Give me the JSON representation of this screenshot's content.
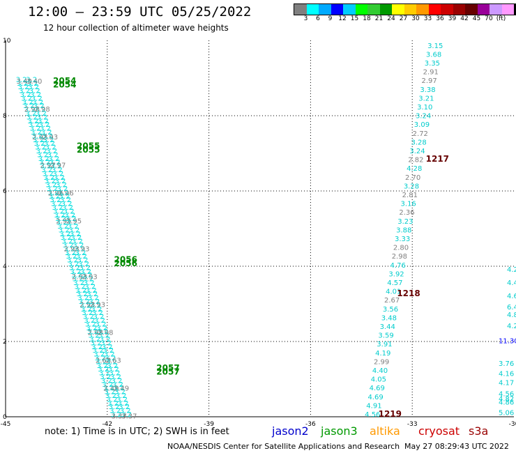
{
  "title": "12:00 – 23:59 UTC 05/25/2022",
  "subtitle": "12 hour collection of altimeter wave heights",
  "colorbar": {
    "colors": [
      "#808080",
      "#00ffff",
      "#00aaff",
      "#0000ff",
      "#00ccff",
      "#00ff00",
      "#33cc33",
      "#009900",
      "#ffff00",
      "#ffcc00",
      "#ff9900",
      "#ff0000",
      "#cc0000",
      "#990000",
      "#660000",
      "#990099",
      "#cc99ff",
      "#ff99ff",
      "#000000"
    ],
    "labels": [
      "3",
      "6",
      "9",
      "12",
      "15",
      "18",
      "21",
      "24",
      "27",
      "30",
      "33",
      "36",
      "39",
      "42",
      "45",
      "70",
      "(ft)"
    ]
  },
  "axes": {
    "x_ticks": [
      "-45",
      "-42",
      "-39",
      "-36",
      "-33",
      "-30"
    ],
    "y_ticks": [
      "0",
      "2",
      "4",
      "6",
      "8",
      "10"
    ],
    "xlim": [
      -45,
      -30
    ],
    "ylim": [
      0,
      10
    ]
  },
  "passes": {
    "left": [
      {
        "label": "2054",
        "lon": -43.6,
        "lat": 8.85
      },
      {
        "label": "2054",
        "lon": -43.6,
        "lat": 8.75
      },
      {
        "label": "2055",
        "lon": -42.9,
        "lat": 7.12
      },
      {
        "label": "2055",
        "lon": -42.9,
        "lat": 7.02
      },
      {
        "label": "2056",
        "lon": -41.8,
        "lat": 4.1
      },
      {
        "label": "2056",
        "lon": -41.8,
        "lat": 4.0
      },
      {
        "label": "2057",
        "lon": -40.55,
        "lat": 1.22
      },
      {
        "label": "2057",
        "lon": -40.55,
        "lat": 1.12
      }
    ],
    "right": [
      {
        "label": "1217",
        "lon": -32.6,
        "lat": 6.78
      },
      {
        "label": "1218",
        "lon": -33.45,
        "lat": 3.2
      },
      {
        "label": "1219",
        "lon": -34.0,
        "lat": 0.0
      }
    ]
  },
  "right_track": [
    {
      "v": "3.15",
      "c": "#00cccc"
    },
    {
      "v": "3.68",
      "c": "#00cccc"
    },
    {
      "v": "3.35",
      "c": "#00cccc"
    },
    {
      "v": "2.91",
      "c": "#808080"
    },
    {
      "v": "2.97",
      "c": "#808080"
    },
    {
      "v": "3.38",
      "c": "#00cccc"
    },
    {
      "v": "3.21",
      "c": "#00cccc"
    },
    {
      "v": "3.10",
      "c": "#00cccc"
    },
    {
      "v": "3.24",
      "c": "#00cccc"
    },
    {
      "v": "3.09",
      "c": "#00cccc"
    },
    {
      "v": "2.72",
      "c": "#808080"
    },
    {
      "v": "3.28",
      "c": "#00cccc"
    },
    {
      "v": "3.24",
      "c": "#00cccc"
    },
    {
      "v": "2.82",
      "c": "#808080"
    },
    {
      "v": "4.28",
      "c": "#00cccc"
    },
    {
      "v": "2.70",
      "c": "#808080"
    },
    {
      "v": "3.28",
      "c": "#00cccc"
    },
    {
      "v": "2.81",
      "c": "#808080"
    },
    {
      "v": "3.16",
      "c": "#00cccc"
    },
    {
      "v": "2.36",
      "c": "#808080"
    },
    {
      "v": "3.23",
      "c": "#00cccc"
    },
    {
      "v": "3.88",
      "c": "#00cccc"
    },
    {
      "v": "3.33",
      "c": "#00cccc"
    },
    {
      "v": "2.80",
      "c": "#808080"
    },
    {
      "v": "2.98",
      "c": "#808080"
    },
    {
      "v": "4.76",
      "c": "#00cccc"
    },
    {
      "v": "3.92",
      "c": "#00cccc"
    },
    {
      "v": "4.57",
      "c": "#00cccc"
    },
    {
      "v": "4.01",
      "c": "#00cccc"
    },
    {
      "v": "2.67",
      "c": "#808080"
    },
    {
      "v": "3.56",
      "c": "#00cccc"
    },
    {
      "v": "3.48",
      "c": "#00cccc"
    },
    {
      "v": "3.44",
      "c": "#00cccc"
    },
    {
      "v": "3.59",
      "c": "#00cccc"
    },
    {
      "v": "3.91",
      "c": "#00cccc"
    },
    {
      "v": "4.19",
      "c": "#00cccc"
    },
    {
      "v": "2.99",
      "c": "#808080"
    },
    {
      "v": "4.40",
      "c": "#00cccc"
    },
    {
      "v": "4.05",
      "c": "#00cccc"
    },
    {
      "v": "4.69",
      "c": "#00cccc"
    },
    {
      "v": "4.69",
      "c": "#00cccc"
    },
    {
      "v": "4.91",
      "c": "#00cccc"
    },
    {
      "v": "4.56",
      "c": "#00cccc"
    }
  ],
  "left_track": {
    "visible": [
      "3.40",
      "2.98",
      "2.93",
      "2.97",
      "2.96",
      "2.95",
      "2.93",
      "2.93",
      "2.93",
      "2.98",
      "2.63",
      "2.49",
      "3.37"
    ]
  },
  "edge_values": [
    "3.76",
    "4.16",
    "4.17",
    "4.56",
    "4.82",
    "4.86",
    "5.06",
    "11.30",
    "4.2",
    "4.8",
    "6.4",
    "4.6",
    "4.4",
    "4.2"
  ],
  "legend": {
    "note": "note:  1) Time is in UTC;  2) SWH is in feet",
    "sats": [
      {
        "name": "jason2",
        "color": "#0000cc"
      },
      {
        "name": "jason3",
        "color": "#009900"
      },
      {
        "name": "altika",
        "color": "#ff9900"
      },
      {
        "name": "cryosat",
        "color": "#cc0000"
      },
      {
        "name": "s3a",
        "color": "#990000"
      }
    ]
  },
  "footer": {
    "center": "NOAA/NESDIS Center for Satellite Applications and Research",
    "date": "May 27 08:29:43 UTC 2022"
  }
}
